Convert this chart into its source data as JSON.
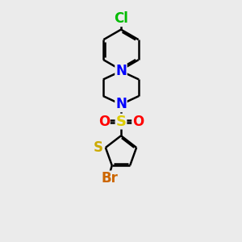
{
  "bg_color": "#ebebeb",
  "bond_color": "#000000",
  "bond_width": 1.8,
  "atoms": {
    "Cl": {
      "color": "#00bb00"
    },
    "N": {
      "color": "#0000ff"
    },
    "S_sulfonyl": {
      "color": "#ddcc00"
    },
    "O": {
      "color": "#ff0000"
    },
    "S_thio": {
      "color": "#ccaa00"
    },
    "Br": {
      "color": "#cc6600"
    }
  },
  "font_size": 12
}
